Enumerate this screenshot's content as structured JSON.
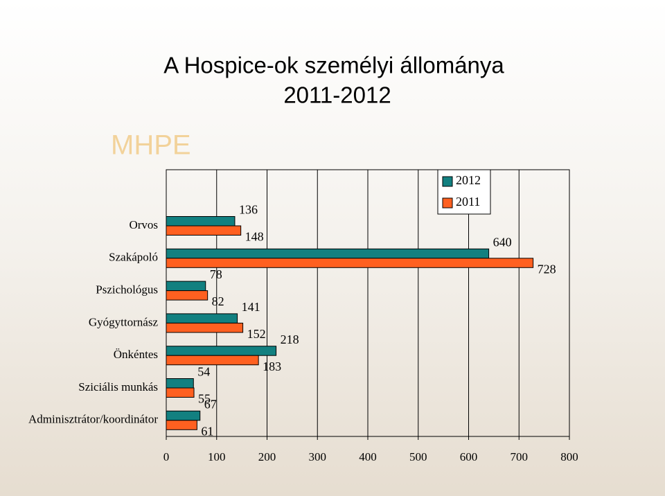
{
  "logo": "MHPE",
  "chart_data": {
    "type": "hbar",
    "title": "A Hospice-ok személyi állománya",
    "subtitle": "2011-2012",
    "categories": [
      "Orvos",
      "Szakápoló",
      "Pszichológus",
      "Gyógyttornász",
      "Önkéntes",
      "Sziciális munkás",
      "Adminisztrátor/koordinátor"
    ],
    "series": [
      {
        "name": "2012",
        "color": "#128080",
        "values": [
          136,
          640,
          78,
          141,
          218,
          54,
          67
        ]
      },
      {
        "name": "2011",
        "color": "#ff6020",
        "values": [
          148,
          728,
          82,
          152,
          183,
          55,
          61
        ]
      }
    ],
    "xlim": [
      0,
      800
    ],
    "xticks": [
      0,
      100,
      200,
      300,
      400,
      500,
      600,
      700,
      800
    ],
    "grid": true,
    "legend": "top-right"
  }
}
